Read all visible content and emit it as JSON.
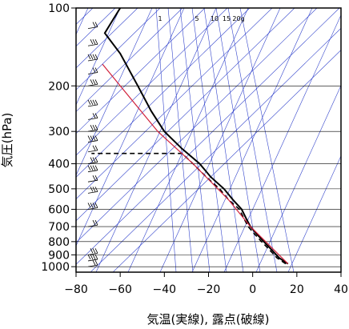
{
  "chart_data": {
    "type": "line",
    "title": "",
    "xlabel": "気温(実線), 露点(破線)",
    "ylabel": "気圧(hPa)",
    "xlim": [
      -80,
      40
    ],
    "ylim": [
      1050,
      100
    ],
    "y_scale": "log",
    "x_ticks": [
      -80,
      -60,
      -40,
      -20,
      0,
      20,
      40
    ],
    "x_tick_labels": [
      "−80",
      "−60",
      "−40",
      "−20",
      "0",
      "20",
      "40"
    ],
    "y_ticks": [
      100,
      200,
      300,
      400,
      500,
      600,
      700,
      800,
      900,
      1000
    ],
    "y_tick_labels": [
      "100",
      "200",
      "300",
      "400",
      "500",
      "600",
      "700",
      "800",
      "900",
      "1000"
    ],
    "mixing_ratio_labels": [
      "1",
      "5",
      "10",
      "15",
      "20g"
    ],
    "colors": {
      "temperature": "#000000",
      "dewpoint": "#000000",
      "parcel": "#d0203a",
      "reference_lines": "#3344cc",
      "grid": "#000000"
    },
    "series": [
      {
        "name": "気温",
        "style": "solid",
        "points": [
          {
            "p": 975,
            "t": 16
          },
          {
            "p": 925,
            "t": 12
          },
          {
            "p": 850,
            "t": 8
          },
          {
            "p": 800,
            "t": 5
          },
          {
            "p": 750,
            "t": 2
          },
          {
            "p": 700,
            "t": -1
          },
          {
            "p": 650,
            "t": -3
          },
          {
            "p": 600,
            "t": -5
          },
          {
            "p": 550,
            "t": -9
          },
          {
            "p": 500,
            "t": -13
          },
          {
            "p": 450,
            "t": -19
          },
          {
            "p": 400,
            "t": -24
          },
          {
            "p": 350,
            "t": -32
          },
          {
            "p": 300,
            "t": -40
          },
          {
            "p": 250,
            "t": -46
          },
          {
            "p": 200,
            "t": -52
          },
          {
            "p": 150,
            "t": -60
          },
          {
            "p": 125,
            "t": -67
          },
          {
            "p": 110,
            "t": -63
          },
          {
            "p": 100,
            "t": -60
          }
        ]
      },
      {
        "name": "露点",
        "style": "dashed",
        "points": [
          {
            "p": 975,
            "t": 15
          },
          {
            "p": 925,
            "t": 11
          },
          {
            "p": 850,
            "t": 7
          },
          {
            "p": 800,
            "t": 4
          },
          {
            "p": 750,
            "t": 1
          },
          {
            "p": 700,
            "t": -2
          },
          {
            "p": 650,
            "t": -4
          },
          {
            "p": 600,
            "t": -6
          },
          {
            "p": 550,
            "t": -11
          },
          {
            "p": 500,
            "t": -15
          },
          {
            "p": 450,
            "t": -21
          },
          {
            "p": 400,
            "t": -27
          },
          {
            "p": 365,
            "t": -32
          },
          {
            "p": 365,
            "t": -73
          }
        ]
      },
      {
        "name": "",
        "style": "parcel",
        "points": [
          {
            "p": 975,
            "t": 16
          },
          {
            "p": 700,
            "t": -1
          },
          {
            "p": 550,
            "t": -11
          },
          {
            "p": 400,
            "t": -27
          },
          {
            "p": 300,
            "t": -43
          },
          {
            "p": 200,
            "t": -60
          },
          {
            "p": 165,
            "t": -68
          }
        ]
      }
    ]
  }
}
